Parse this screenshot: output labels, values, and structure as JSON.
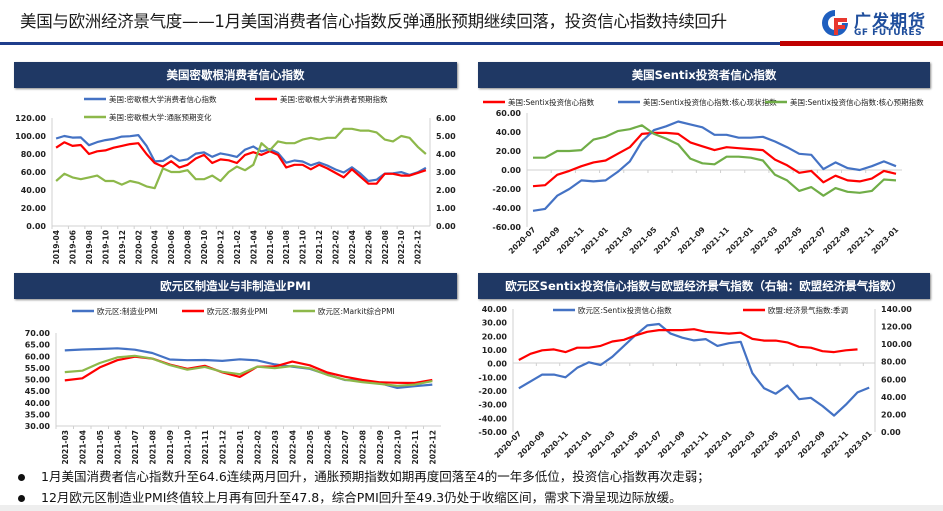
{
  "header": {
    "title": "美国与欧洲经济景气度——1月美国消费者信心指数反弹通胀预期继续回落，投资信心指数持续回升",
    "logo_cn": "广发期货",
    "logo_en": "GF FUTURES"
  },
  "colors": {
    "navy": "#1F3864",
    "blue": "#4472C4",
    "red": "#FF0000",
    "green": "#8DB84A"
  },
  "chart_data": [
    {
      "type": "line",
      "title": "美国密歇根消费者信心指数",
      "frequency": "monthly",
      "x_range": [
        "2019-04",
        "2023-01"
      ],
      "x_tick_labels": [
        "2019-04",
        "2019-06",
        "2019-08",
        "2019-10",
        "2019-12",
        "2020-02",
        "2020-04",
        "2020-06",
        "2020-08",
        "2020-10",
        "2020-12",
        "2021-02",
        "2021-04",
        "2021-06",
        "2021-08",
        "2021-10",
        "2021-12",
        "2022-02",
        "2022-04",
        "2022-06",
        "2022-08",
        "2022-10",
        "2022-12"
      ],
      "ylim": [
        0,
        120
      ],
      "y_ticks": [
        "0.00",
        "20.00",
        "40.00",
        "60.00",
        "80.00",
        "100.00",
        "120.00"
      ],
      "y2lim": [
        0,
        6
      ],
      "y2_ticks": [
        "0.00",
        "1.00",
        "2.00",
        "3.00",
        "4.00",
        "5.00",
        "6.00"
      ],
      "series": [
        {
          "name": "美国:密歇根大学消费者信心指数",
          "color": "#4472C4",
          "axis": "left",
          "values": [
            97.2,
            100,
            98.2,
            98.4,
            89.8,
            93.2,
            95.5,
            96.8,
            99.3,
            99.8,
            101,
            89.1,
            71.8,
            72.3,
            78.1,
            72.5,
            74.1,
            80.4,
            81.8,
            76.9,
            80.7,
            79,
            76.8,
            84.9,
            88.3,
            82.9,
            85.5,
            81.2,
            70.3,
            72.8,
            71.7,
            67.4,
            70.6,
            67.2,
            62.8,
            59.4,
            65.2,
            58.4,
            50,
            51.5,
            58.2,
            58.6,
            59.9,
            56.8,
            59.7,
            64.6
          ]
        },
        {
          "name": "美国:密歇根大学消费者预期指数",
          "color": "#FF0000",
          "axis": "left",
          "values": [
            87,
            93,
            89,
            90,
            80,
            83,
            84,
            87,
            89,
            91,
            92,
            80,
            70,
            66,
            72,
            65,
            68,
            75,
            79,
            70,
            74,
            73,
            70,
            79,
            82,
            79,
            83,
            79,
            65,
            68,
            68,
            63,
            68,
            64,
            59,
            54,
            63,
            55,
            47,
            47,
            58,
            58,
            56,
            56,
            59,
            62
          ]
        },
        {
          "name": "美国:密歇根大学:通胀预期变化",
          "color": "#8DB84A",
          "axis": "right",
          "values": [
            2.5,
            2.9,
            2.7,
            2.6,
            2.7,
            2.8,
            2.5,
            2.5,
            2.3,
            2.5,
            2.4,
            2.2,
            2.1,
            3.2,
            3.0,
            3.0,
            3.1,
            2.6,
            2.6,
            2.8,
            2.5,
            3.0,
            3.3,
            3.1,
            3.4,
            4.6,
            4.2,
            4.7,
            4.6,
            4.6,
            4.8,
            4.9,
            4.8,
            4.9,
            4.9,
            5.4,
            5.4,
            5.3,
            5.3,
            5.2,
            4.8,
            4.7,
            5.0,
            4.9,
            4.4,
            4.0
          ]
        }
      ]
    },
    {
      "type": "line",
      "title": "美国Sentix投资者信心指数",
      "frequency": "monthly",
      "x_range": [
        "2020-07",
        "2023-01"
      ],
      "x_tick_labels": [
        "2020-07",
        "2020-09",
        "2020-11",
        "2021-01",
        "2021-03",
        "2021-05",
        "2021-07",
        "2021-09",
        "2021-11",
        "2022-01",
        "2022-03",
        "2022-05",
        "2022-07",
        "2022-09",
        "2022-11",
        "2023-01"
      ],
      "ylim": [
        -60,
        60
      ],
      "y_ticks": [
        "-60.00",
        "-40.00",
        "-20.00",
        "0.00",
        "20.00",
        "40.00",
        "60.00"
      ],
      "series": [
        {
          "name": "美国:Sentix投资信心指数",
          "color": "#FF0000",
          "axis": "left",
          "values": [
            -17,
            -16,
            -5,
            -1,
            4,
            8,
            10,
            17,
            24,
            38,
            39,
            39,
            38,
            29,
            25,
            21,
            24,
            23,
            22,
            21,
            11,
            5,
            -3,
            -1,
            -13,
            -6,
            -11,
            -12,
            -9,
            -1,
            -4
          ]
        },
        {
          "name": "美国:Sentix投资信心指数:核心现状指数",
          "color": "#4472C4",
          "axis": "left",
          "values": [
            -43,
            -41,
            -27,
            -20,
            -11,
            -12,
            -11,
            -2,
            9,
            30,
            42,
            46,
            51,
            48,
            45,
            37,
            37,
            34,
            34,
            35,
            30,
            24,
            17,
            16,
            1,
            8,
            2,
            0,
            4,
            9,
            4
          ]
        },
        {
          "name": "美国:Sentix投资信心指数:核心预期指数",
          "color": "#70AD47",
          "axis": "left",
          "values": [
            13,
            13,
            20,
            20,
            21,
            32,
            35,
            41,
            43,
            47,
            38,
            33,
            27,
            12,
            7,
            6,
            14,
            14,
            13,
            10,
            -5,
            -11,
            -22,
            -18,
            -27,
            -19,
            -23,
            -24,
            -22,
            -10,
            -11
          ]
        }
      ]
    },
    {
      "type": "line",
      "title": "欧元区制造业与非制造业PMI",
      "frequency": "monthly",
      "x_range": [
        "2021-03",
        "2022-12"
      ],
      "x_tick_labels": [
        "2021-03",
        "2021-04",
        "2021-05",
        "2021-06",
        "2021-07",
        "2021-08",
        "2021-09",
        "2021-10",
        "2021-11",
        "2021-12",
        "2022-01",
        "2022-02",
        "2022-03",
        "2022-04",
        "2022-05",
        "2022-06",
        "2022-07",
        "2022-08",
        "2022-09",
        "2022-10",
        "2022-11",
        "2022-12"
      ],
      "ylim": [
        30,
        70
      ],
      "y_ticks": [
        "30.00",
        "35.00",
        "40.00",
        "45.00",
        "50.00",
        "55.00",
        "60.00",
        "65.00",
        "70.00"
      ],
      "series": [
        {
          "name": "欧元区:制造业PMI",
          "color": "#4472C4",
          "axis": "left",
          "values": [
            62.5,
            62.9,
            63.1,
            63.4,
            62.8,
            61.4,
            58.6,
            58.3,
            58.4,
            58.0,
            58.7,
            58.2,
            56.5,
            55.5,
            54.6,
            52.1,
            49.8,
            49.6,
            48.4,
            46.4,
            47.1,
            47.8
          ]
        },
        {
          "name": "欧元区:服务业PMI",
          "color": "#FF0000",
          "axis": "left",
          "values": [
            49.6,
            50.5,
            55.2,
            58.3,
            59.8,
            59.0,
            56.4,
            54.6,
            55.9,
            53.1,
            51.1,
            55.5,
            55.6,
            57.7,
            56.1,
            53.0,
            51.2,
            49.8,
            48.8,
            48.6,
            48.5,
            49.8
          ]
        },
        {
          "name": "欧元区:Markit综合PMI",
          "color": "#8DB84A",
          "axis": "left",
          "values": [
            53.2,
            53.8,
            57.1,
            59.5,
            60.2,
            59.0,
            56.2,
            54.2,
            55.4,
            53.3,
            52.3,
            55.5,
            54.9,
            55.8,
            54.8,
            52.0,
            49.9,
            48.9,
            48.1,
            47.3,
            47.8,
            49.3
          ]
        }
      ]
    },
    {
      "type": "line",
      "title": "欧元区Sentix投资信心指数与欧盟经济景气指数（右轴：欧盟经济景气指数）",
      "frequency": "monthly",
      "x_range": [
        "2020-07",
        "2023-01"
      ],
      "x_tick_labels": [
        "2020-07",
        "2020-09",
        "2020-11",
        "2021-01",
        "2021-03",
        "2021-05",
        "2021-07",
        "2021-09",
        "2021-11",
        "2022-01",
        "2022-03",
        "2022-05",
        "2022-07",
        "2022-09",
        "2022-11",
        "2023-01"
      ],
      "ylim": [
        -50,
        40
      ],
      "y_ticks": [
        "-50.00",
        "-40.00",
        "-30.00",
        "-20.00",
        "-10.00",
        "0.00",
        "10.00",
        "20.00",
        "30.00",
        "40.00"
      ],
      "y2lim": [
        0,
        140
      ],
      "y2_ticks": [
        "0.00",
        "20.00",
        "40.00",
        "60.00",
        "80.00",
        "100.00",
        "120.00",
        "140.00"
      ],
      "series": [
        {
          "name": "欧元区:Sentix投资信心指数",
          "color": "#4472C4",
          "axis": "left",
          "values": [
            -18,
            -13,
            -8,
            -8,
            -10,
            -3,
            1,
            -1,
            5,
            13,
            21,
            28,
            29,
            22,
            19,
            17,
            18,
            13,
            15,
            16,
            -7,
            -18,
            -22,
            -16,
            -26,
            -25,
            -31,
            -38,
            -30,
            -21,
            -17.5
          ]
        },
        {
          "name": "欧盟:经济景气指数:季调",
          "color": "#FF0000",
          "axis": "right",
          "values": [
            82,
            89,
            93,
            94,
            91,
            96,
            96,
            98,
            103,
            105,
            110,
            114,
            116,
            116,
            116,
            117,
            114,
            113,
            112,
            113,
            106,
            104,
            104,
            102,
            97,
            96,
            92,
            91,
            93,
            94,
            null
          ]
        }
      ]
    }
  ],
  "bullets": [
    "1月美国消费者信心指数升至64.6连续两月回升，通胀预期指数如期再度回落至4的一年多低位，投资信心指数再次走弱；",
    "12月欧元区制造业PMI终值较上月再有回升至47.8，综合PMI回升至49.3仍处于收缩区间，需求下滑呈现边际放缓。"
  ]
}
